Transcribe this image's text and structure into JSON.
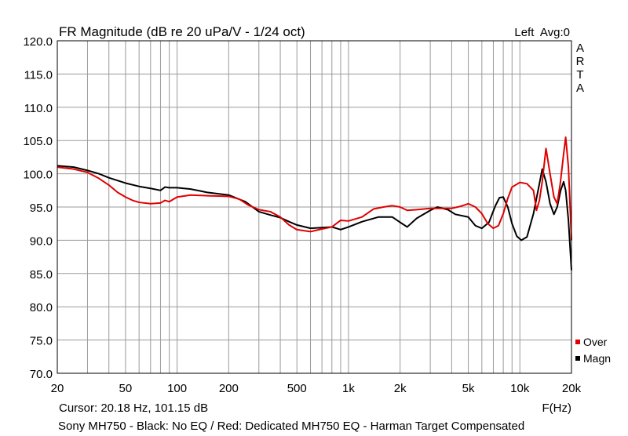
{
  "header": {
    "title": "FR Magnitude (dB re 20 uPa/V - 1/24 oct)",
    "status": "Left  Avg:0",
    "brand": [
      "A",
      "R",
      "T",
      "A"
    ]
  },
  "footer": {
    "cursor": "Cursor: 20.18 Hz, 101.15 dB",
    "x_unit": "F(Hz)",
    "caption": "Sony MH750 - Black: No EQ / Red: Dedicated MH750 EQ - Harman Target Compensated"
  },
  "colors": {
    "over": "#e00000",
    "magn": "#000000",
    "grid": "#9a9a9a"
  },
  "chart_data": {
    "type": "line",
    "title": "FR Magnitude (dB re 20 uPa/V - 1/24 oct)",
    "xlabel": "F(Hz)",
    "ylabel": "",
    "xscale": "log",
    "xlim": [
      20,
      20000
    ],
    "ylim": [
      70,
      120
    ],
    "grid": true,
    "legend": "bottom-right",
    "x_ticks": [
      {
        "value": 20,
        "label": "20"
      },
      {
        "value": 50,
        "label": "50"
      },
      {
        "value": 100,
        "label": "100"
      },
      {
        "value": 200,
        "label": "200"
      },
      {
        "value": 500,
        "label": "500"
      },
      {
        "value": 1000,
        "label": "1k"
      },
      {
        "value": 2000,
        "label": "2k"
      },
      {
        "value": 5000,
        "label": "5k"
      },
      {
        "value": 10000,
        "label": "10k"
      },
      {
        "value": 20000,
        "label": "20k"
      }
    ],
    "y_ticks": [
      {
        "value": 120,
        "label": "120.0"
      },
      {
        "value": 115,
        "label": "115.0"
      },
      {
        "value": 110,
        "label": "110.0"
      },
      {
        "value": 105,
        "label": "105.0"
      },
      {
        "value": 100,
        "label": "100.0"
      },
      {
        "value": 95,
        "label": "95.0"
      },
      {
        "value": 90,
        "label": "90.0"
      },
      {
        "value": 85,
        "label": "85.0"
      },
      {
        "value": 80,
        "label": "80.0"
      },
      {
        "value": 75,
        "label": "75.0"
      },
      {
        "value": 70,
        "label": "70.0"
      }
    ],
    "series": [
      {
        "name": "Magn",
        "color": "#000000",
        "points": [
          [
            20,
            101.2
          ],
          [
            25,
            101.0
          ],
          [
            30,
            100.5
          ],
          [
            35,
            100.0
          ],
          [
            40,
            99.4
          ],
          [
            50,
            98.6
          ],
          [
            60,
            98.1
          ],
          [
            70,
            97.8
          ],
          [
            80,
            97.5
          ],
          [
            85,
            98.0
          ],
          [
            90,
            97.9
          ],
          [
            100,
            97.9
          ],
          [
            120,
            97.7
          ],
          [
            150,
            97.2
          ],
          [
            200,
            96.8
          ],
          [
            250,
            95.8
          ],
          [
            300,
            94.3
          ],
          [
            350,
            93.8
          ],
          [
            400,
            93.4
          ],
          [
            450,
            92.8
          ],
          [
            500,
            92.3
          ],
          [
            600,
            91.8
          ],
          [
            700,
            91.9
          ],
          [
            800,
            92.0
          ],
          [
            900,
            91.6
          ],
          [
            1000,
            92.0
          ],
          [
            1200,
            92.8
          ],
          [
            1500,
            93.5
          ],
          [
            1800,
            93.5
          ],
          [
            2000,
            92.7
          ],
          [
            2200,
            92.0
          ],
          [
            2500,
            93.3
          ],
          [
            3000,
            94.5
          ],
          [
            3300,
            95.0
          ],
          [
            3800,
            94.6
          ],
          [
            4200,
            93.9
          ],
          [
            5000,
            93.5
          ],
          [
            5500,
            92.2
          ],
          [
            6000,
            91.8
          ],
          [
            6600,
            92.7
          ],
          [
            7200,
            95.2
          ],
          [
            7600,
            96.4
          ],
          [
            8000,
            96.5
          ],
          [
            8500,
            95.0
          ],
          [
            9000,
            92.5
          ],
          [
            9600,
            90.6
          ],
          [
            10200,
            90.0
          ],
          [
            11000,
            90.5
          ],
          [
            12000,
            94.0
          ],
          [
            13000,
            98.5
          ],
          [
            13500,
            100.7
          ],
          [
            14200,
            98.8
          ],
          [
            15000,
            95.5
          ],
          [
            15800,
            93.9
          ],
          [
            16500,
            95.0
          ],
          [
            17300,
            97.5
          ],
          [
            18000,
            98.8
          ],
          [
            18500,
            97.5
          ],
          [
            19200,
            93.0
          ],
          [
            20000,
            85.5
          ]
        ]
      },
      {
        "name": "Over",
        "color": "#e00000",
        "points": [
          [
            20,
            101.0
          ],
          [
            25,
            100.7
          ],
          [
            30,
            100.2
          ],
          [
            35,
            99.3
          ],
          [
            40,
            98.3
          ],
          [
            45,
            97.2
          ],
          [
            50,
            96.5
          ],
          [
            55,
            96.0
          ],
          [
            60,
            95.7
          ],
          [
            70,
            95.5
          ],
          [
            80,
            95.6
          ],
          [
            85,
            96.0
          ],
          [
            90,
            95.8
          ],
          [
            100,
            96.5
          ],
          [
            120,
            96.8
          ],
          [
            150,
            96.7
          ],
          [
            200,
            96.6
          ],
          [
            230,
            96.2
          ],
          [
            260,
            95.3
          ],
          [
            300,
            94.6
          ],
          [
            350,
            94.3
          ],
          [
            400,
            93.5
          ],
          [
            450,
            92.3
          ],
          [
            500,
            91.6
          ],
          [
            600,
            91.3
          ],
          [
            700,
            91.7
          ],
          [
            800,
            92.0
          ],
          [
            900,
            93.0
          ],
          [
            1000,
            92.9
          ],
          [
            1200,
            93.5
          ],
          [
            1400,
            94.7
          ],
          [
            1600,
            95.0
          ],
          [
            1800,
            95.2
          ],
          [
            2000,
            95.0
          ],
          [
            2200,
            94.5
          ],
          [
            2500,
            94.6
          ],
          [
            3000,
            94.8
          ],
          [
            3500,
            94.8
          ],
          [
            4000,
            94.8
          ],
          [
            4500,
            95.1
          ],
          [
            5000,
            95.5
          ],
          [
            5500,
            95.0
          ],
          [
            6000,
            94.0
          ],
          [
            6500,
            92.5
          ],
          [
            7000,
            91.8
          ],
          [
            7500,
            92.2
          ],
          [
            8000,
            94.0
          ],
          [
            8500,
            96.3
          ],
          [
            9000,
            98.0
          ],
          [
            10000,
            98.7
          ],
          [
            11000,
            98.5
          ],
          [
            12000,
            97.5
          ],
          [
            12500,
            94.5
          ],
          [
            13000,
            96.0
          ],
          [
            13500,
            98.8
          ],
          [
            14200,
            103.8
          ],
          [
            15000,
            100.0
          ],
          [
            15800,
            96.5
          ],
          [
            16500,
            95.5
          ],
          [
            17200,
            98.5
          ],
          [
            18000,
            103.0
          ],
          [
            18500,
            105.5
          ],
          [
            19200,
            101.0
          ],
          [
            20000,
            90.0
          ]
        ]
      }
    ]
  }
}
